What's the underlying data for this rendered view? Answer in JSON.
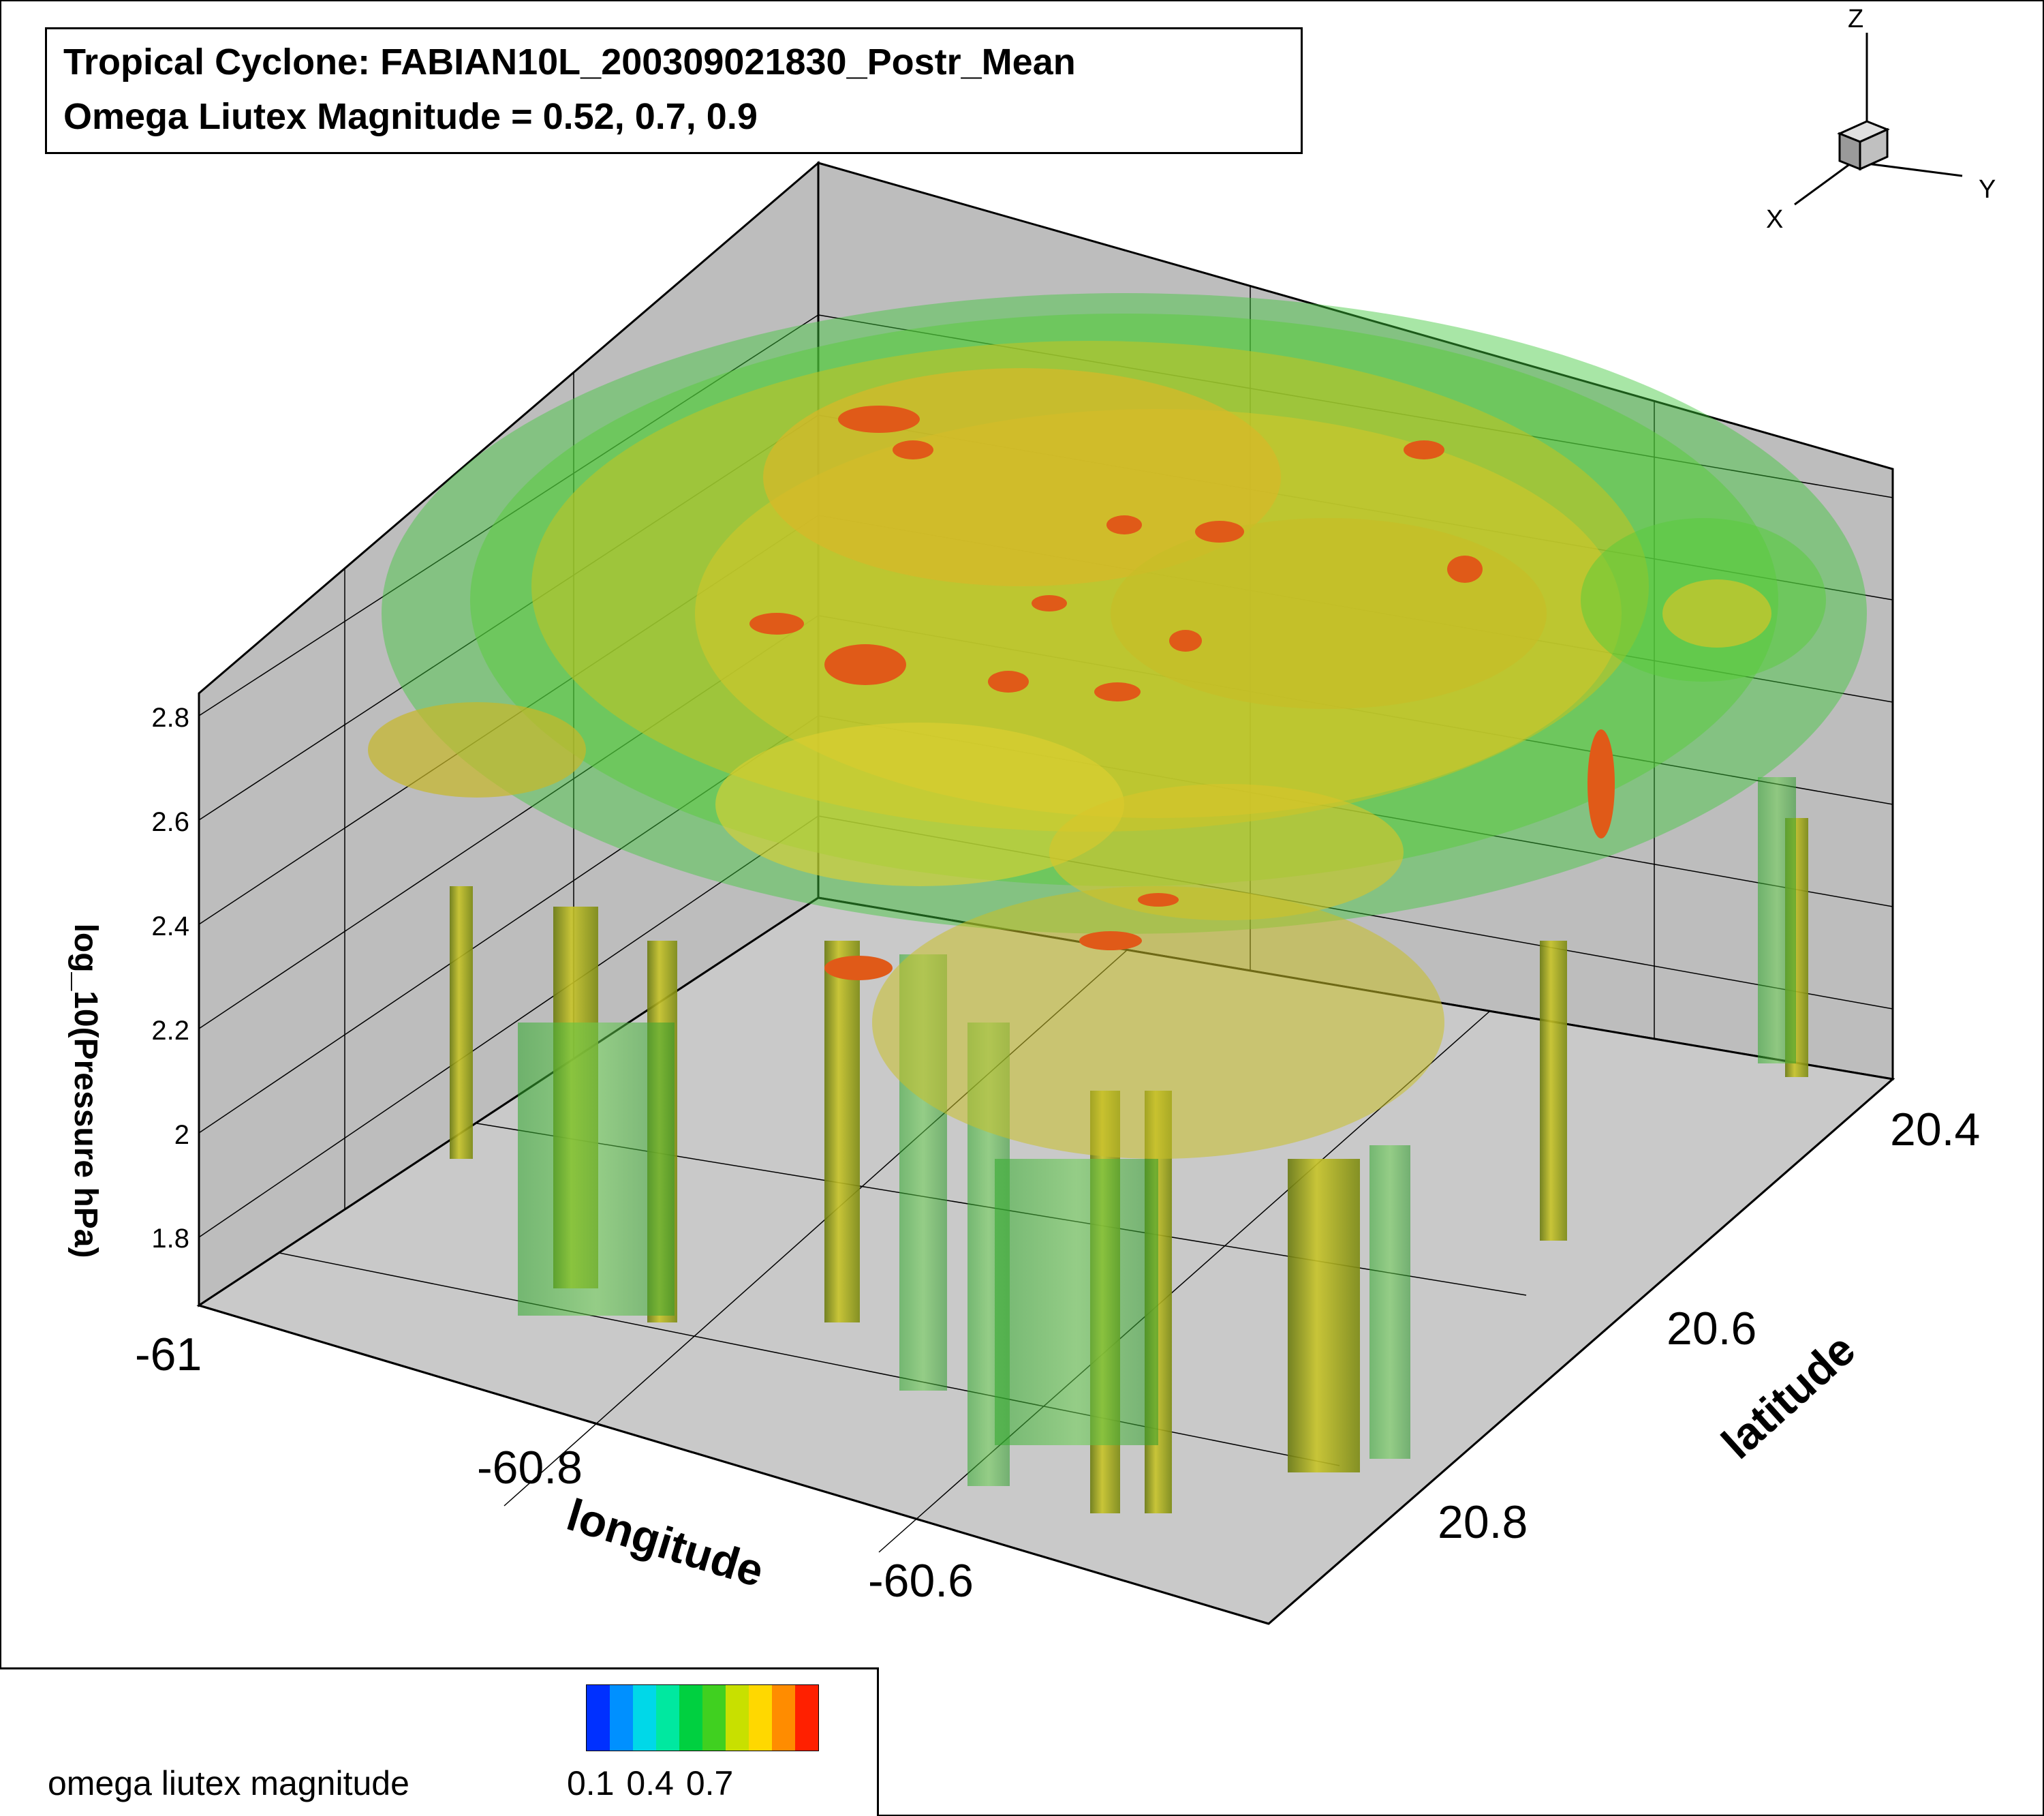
{
  "title_lines": [
    "Tropical Cyclone: FABIAN10L_200309021830_Postr_Mean",
    "Omega Liutex Magnitude = 0.52, 0.7, 0.9"
  ],
  "orientation_axes": {
    "z": "Z",
    "y": "Y",
    "x": "X"
  },
  "chart_data": {
    "type": "3d-isosurface",
    "variable": "omega liutex magnitude",
    "iso_levels": [
      0.52,
      0.7,
      0.9
    ],
    "axes": {
      "x": {
        "label": "longitude",
        "ticks": [
          "-61",
          "-60.8",
          "-60.6"
        ]
      },
      "y": {
        "label": "latitude",
        "ticks": [
          "20.4",
          "20.6",
          "20.8"
        ]
      },
      "z": {
        "label": "log_10(Pressure hPa)",
        "ticks": [
          "1.8",
          "2",
          "2.2",
          "2.4",
          "2.6",
          "2.8"
        ]
      }
    },
    "colormap": {
      "label": "omega liutex magnitude",
      "tick_labels": [
        "0.1",
        "0.4",
        "0.7"
      ],
      "colors": [
        "#0030ff",
        "#0090ff",
        "#00d8e8",
        "#00e8a0",
        "#00d040",
        "#40d020",
        "#c8e000",
        "#ffd800",
        "#ff8c00",
        "#ff2000"
      ]
    },
    "surface_colors": {
      "level_0.52": "#3fc83a",
      "level_0.7": "#c8c020",
      "level_0.9": "#e05a18"
    }
  }
}
